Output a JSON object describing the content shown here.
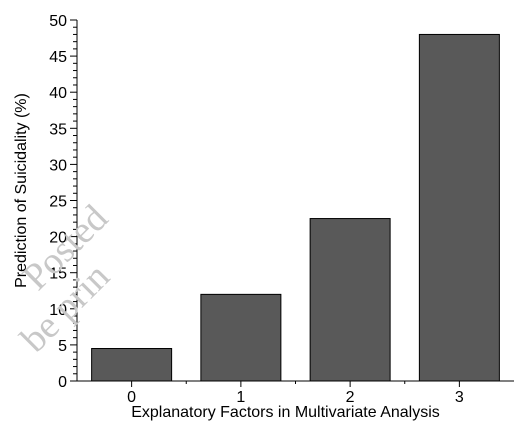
{
  "chart_data": {
    "type": "bar",
    "categories": [
      "0",
      "1",
      "2",
      "3"
    ],
    "values": [
      4.5,
      12,
      22.5,
      48
    ],
    "title": "",
    "xlabel": "Explanatory Factors in Multivariate Analysis",
    "ylabel": "Prediction of Suicidality (%)",
    "ylim": [
      0,
      50
    ],
    "yticks": [
      0,
      5,
      10,
      15,
      20,
      25,
      30,
      35,
      40,
      45,
      50
    ],
    "bar_color": "#595959",
    "grid": false,
    "legend": "none"
  },
  "watermark": {
    "line1": "Posted",
    "line2": "be prin"
  }
}
